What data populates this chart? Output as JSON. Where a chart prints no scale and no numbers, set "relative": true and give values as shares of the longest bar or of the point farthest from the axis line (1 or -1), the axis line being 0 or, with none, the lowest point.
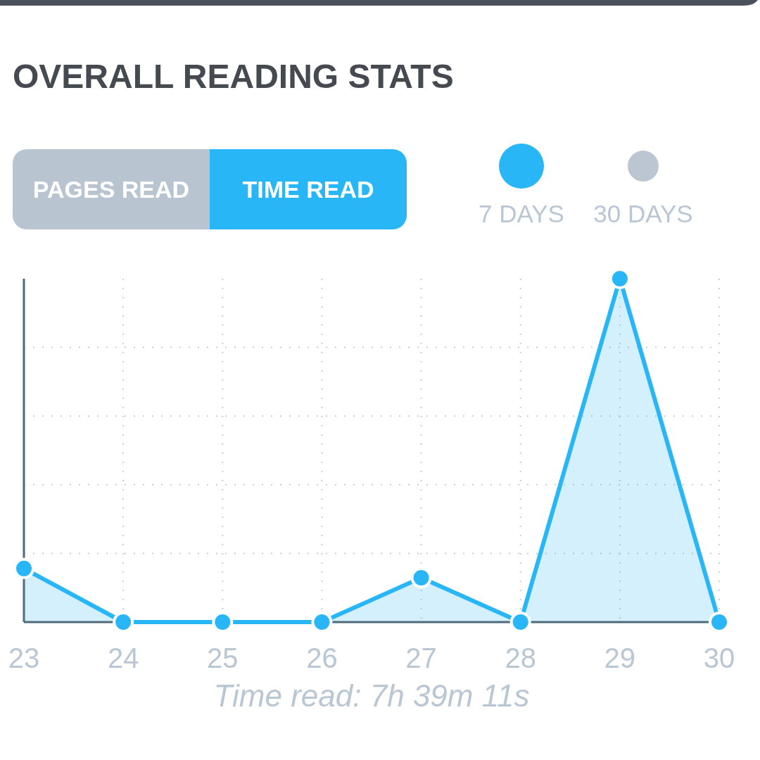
{
  "chart_data": {
    "type": "area",
    "title": "OVERALL READING STATS",
    "xlabel": "Time read: 7h 39m 11s",
    "annotations": [
      "PAGES READ",
      "TIME READ"
    ],
    "categories": [
      "23",
      "24",
      "25",
      "26",
      "27",
      "28",
      "29",
      "30"
    ],
    "series": [
      {
        "name": "7 DAYS",
        "color": "#29b6f6",
        "values": [
          0.156,
          0,
          0,
          0,
          0.129,
          0,
          1,
          0
        ]
      },
      {
        "name": "30 DAYS",
        "color": "#bcc6d2",
        "values": [
          null,
          null,
          null,
          null,
          null,
          null,
          null,
          null
        ]
      }
    ],
    "relative": true,
    "grid": true,
    "legend": "top right",
    "marker": "circle",
    "line_style": "solid"
  }
}
